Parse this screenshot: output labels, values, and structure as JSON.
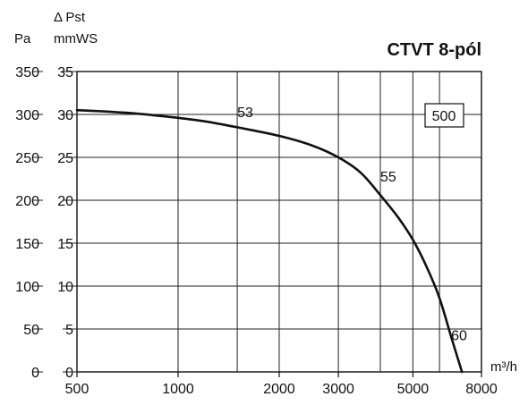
{
  "chart_data": {
    "type": "line",
    "title": "CTVT 8-pól",
    "model_box": "500",
    "xscale": "log",
    "xlim": [
      500,
      8000
    ],
    "x_ticks": [
      500,
      1000,
      2000,
      3000,
      5000,
      8000
    ],
    "x_tick_labels": [
      "500",
      "1000",
      "2000",
      "3000",
      "5000",
      "8000"
    ],
    "x_unit": "m³/h",
    "y_left_unit": "Pa",
    "y_left_ticks": [
      0,
      50,
      100,
      150,
      200,
      250,
      300,
      350
    ],
    "y_left_tick_labels": [
      "0",
      "50",
      "100",
      "150",
      "200",
      "250",
      "300",
      "350"
    ],
    "y_right_title": "Δ Pst",
    "y_right_unit": "mmWS",
    "y_right_ticks": [
      0,
      5,
      10,
      15,
      20,
      25,
      30,
      35
    ],
    "y_right_tick_labels": [
      "0",
      "5",
      "10",
      "15",
      "20",
      "25",
      "30",
      "35"
    ],
    "ylim": [
      0,
      350
    ],
    "grid": true,
    "vertical_gridlines": [
      1000,
      1500,
      2000,
      3000,
      4000,
      5000,
      6000
    ],
    "series": [
      {
        "x": [
          500,
          700,
          900,
          1000,
          1200,
          1500,
          2000,
          2500,
          3000,
          3500,
          4000,
          4500,
          5000,
          5500,
          6000,
          6500,
          7000
        ],
        "y": [
          305,
          302,
          298,
          296,
          292,
          285,
          275,
          264,
          250,
          232,
          206,
          181,
          154,
          122,
          86,
          41,
          0
        ]
      }
    ],
    "annotations": [
      {
        "text": "53",
        "x": 1500,
        "y": 297
      },
      {
        "text": "55",
        "x": 4000,
        "y": 222
      },
      {
        "text": "60",
        "x": 6500,
        "y": 37
      }
    ]
  }
}
